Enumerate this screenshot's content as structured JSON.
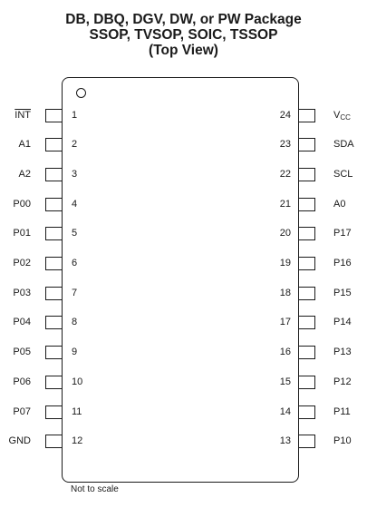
{
  "title": {
    "line1": "DB, DBQ, DGV, DW, or PW Package",
    "line2": "SSOP, TVSOP, SOIC, TSSOP",
    "line3": "(Top View)"
  },
  "left_pins": [
    {
      "number": "1",
      "label": "INT",
      "active_low": true
    },
    {
      "number": "2",
      "label": "A1"
    },
    {
      "number": "3",
      "label": "A2"
    },
    {
      "number": "4",
      "label": "P00"
    },
    {
      "number": "5",
      "label": "P01"
    },
    {
      "number": "6",
      "label": "P02"
    },
    {
      "number": "7",
      "label": "P03"
    },
    {
      "number": "8",
      "label": "P04"
    },
    {
      "number": "9",
      "label": "P05"
    },
    {
      "number": "10",
      "label": "P06"
    },
    {
      "number": "11",
      "label": "P07"
    },
    {
      "number": "12",
      "label": "GND"
    }
  ],
  "right_pins": [
    {
      "number": "24",
      "label": "V",
      "label_sub": "CC"
    },
    {
      "number": "23",
      "label": "SDA"
    },
    {
      "number": "22",
      "label": "SCL"
    },
    {
      "number": "21",
      "label": "A0"
    },
    {
      "number": "20",
      "label": "P17"
    },
    {
      "number": "19",
      "label": "P16"
    },
    {
      "number": "18",
      "label": "P15"
    },
    {
      "number": "17",
      "label": "P14"
    },
    {
      "number": "16",
      "label": "P13"
    },
    {
      "number": "15",
      "label": "P12"
    },
    {
      "number": "14",
      "label": "P11"
    },
    {
      "number": "13",
      "label": "P10"
    }
  ],
  "note": "Not to scale"
}
